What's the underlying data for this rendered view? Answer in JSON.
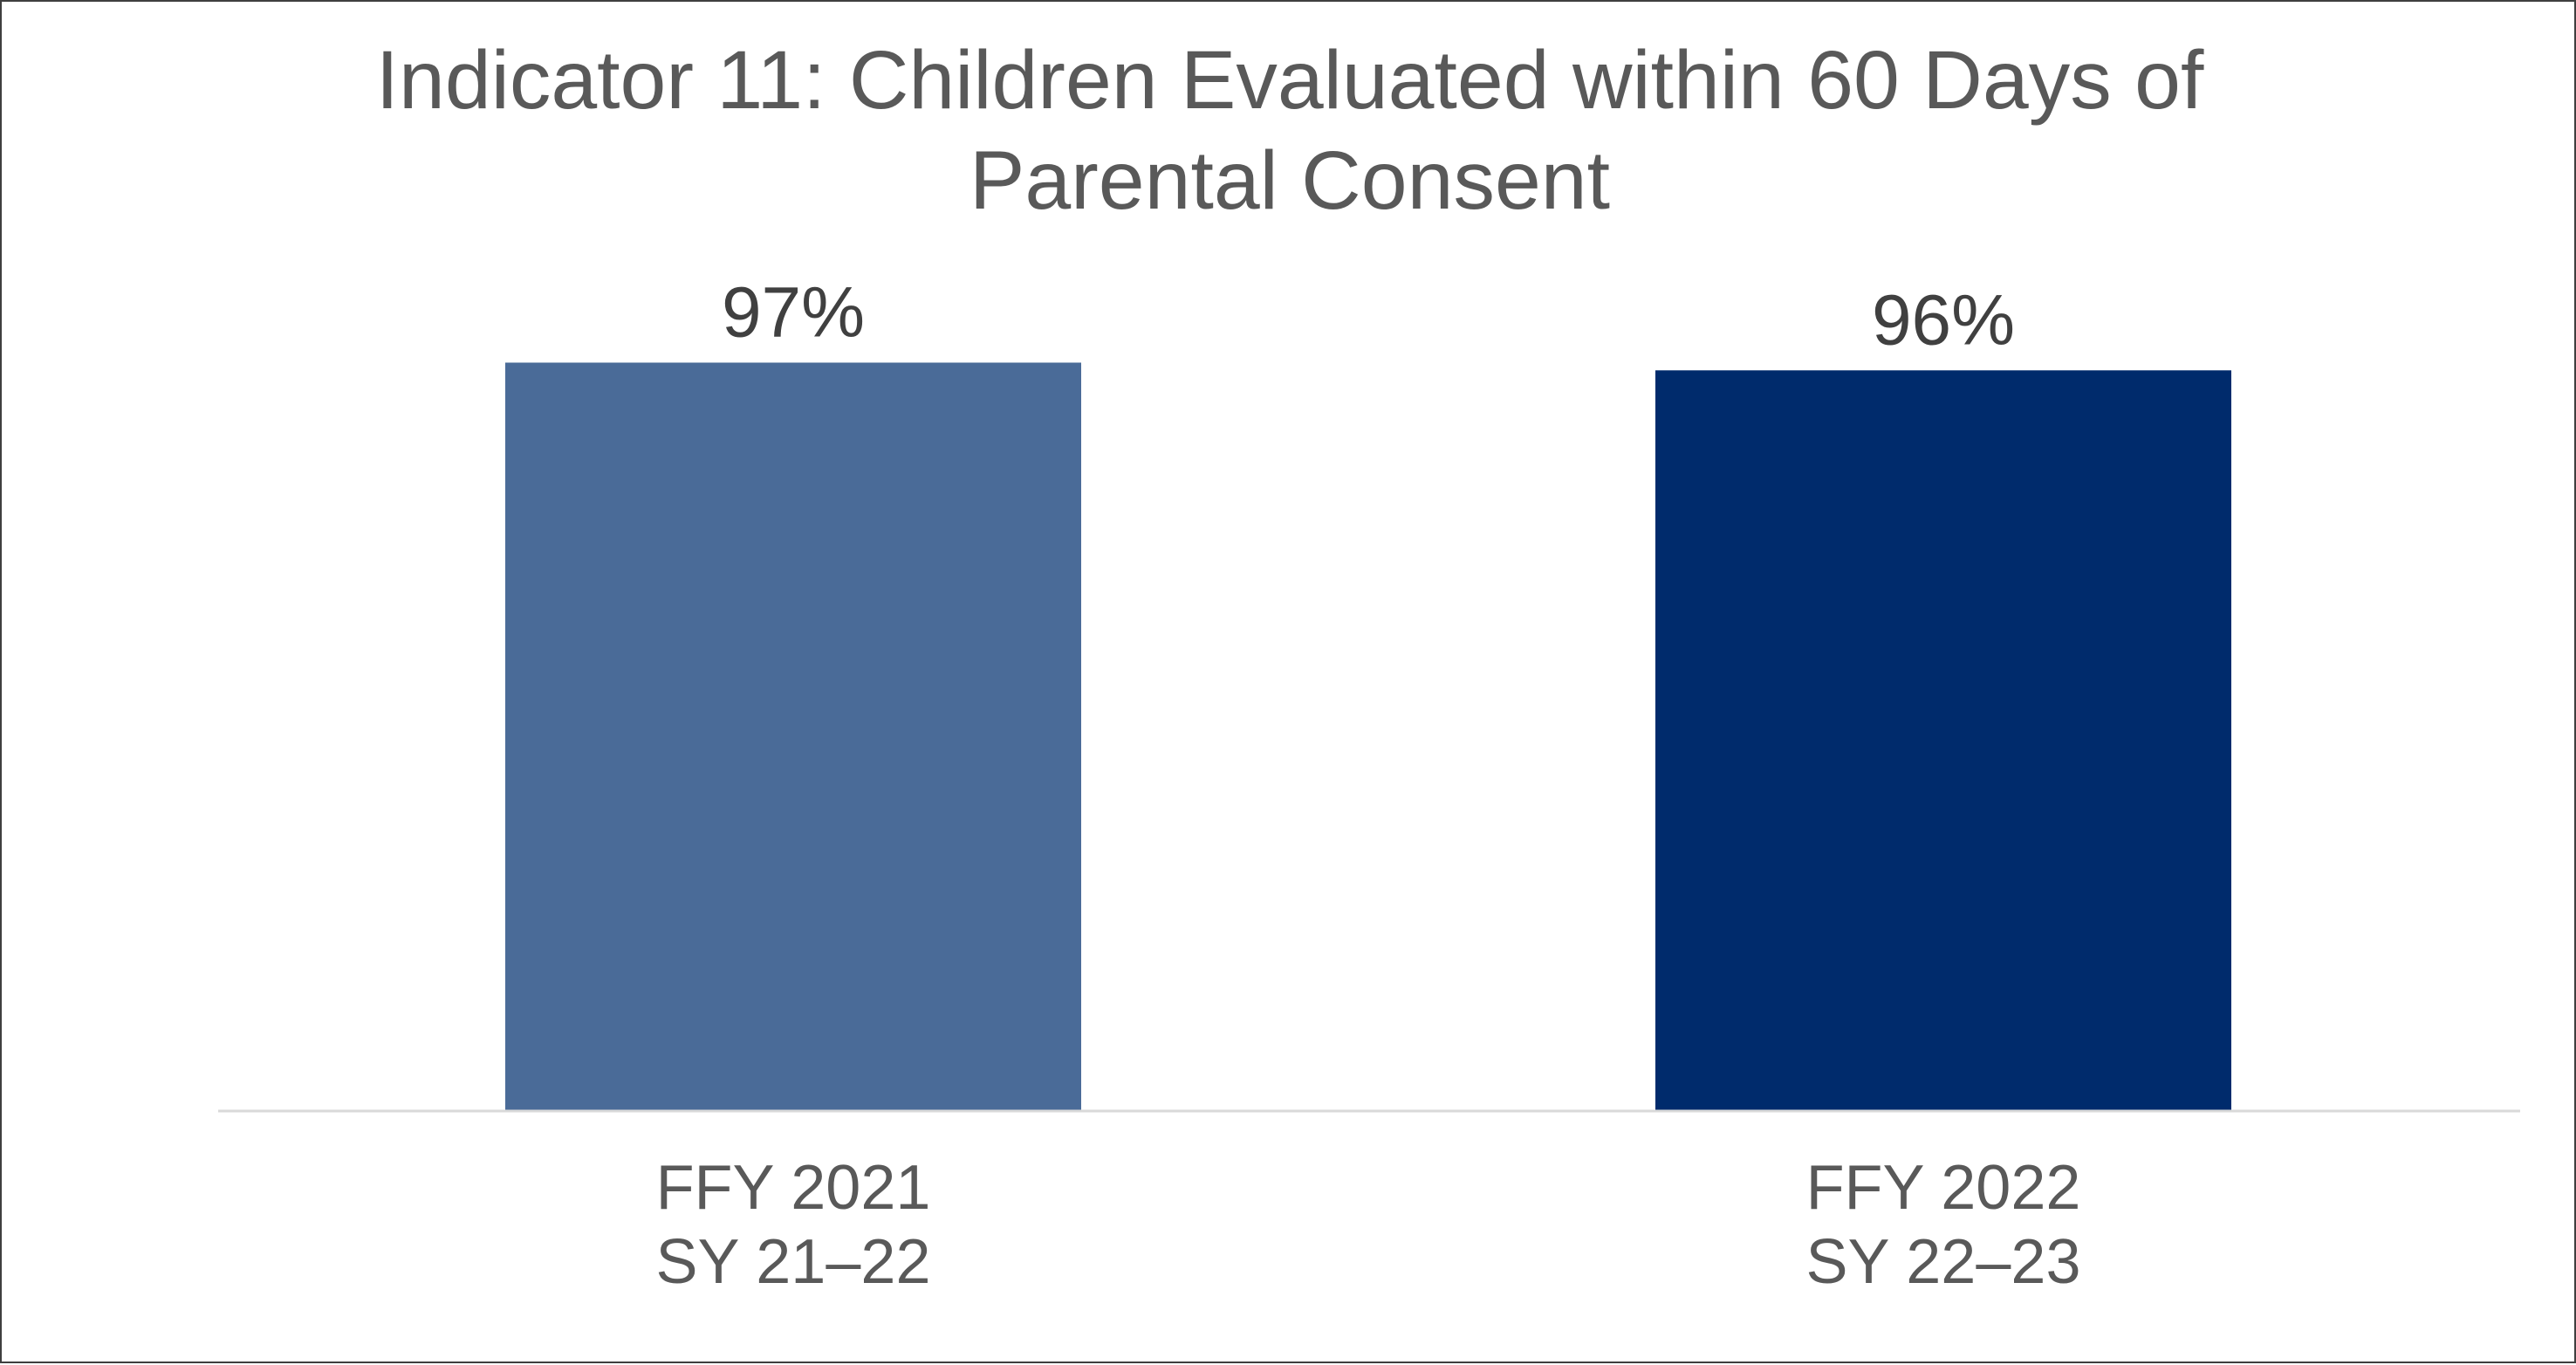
{
  "chart_data": {
    "type": "bar",
    "title_lines": [
      "Indicator 11: Children Evaluated within 60 Days of",
      "Parental Consent"
    ],
    "categories": [
      [
        "FFY 2021",
        "SY 21–22"
      ],
      [
        "FFY 2022",
        "SY 22–23"
      ]
    ],
    "values": [
      97,
      96
    ],
    "value_labels": [
      "97%",
      "96%"
    ],
    "bar_colors": [
      "#4a6b98",
      "#002b6c"
    ],
    "ylim": [
      0,
      100
    ],
    "grid": false,
    "legend": "none",
    "xlabel": "",
    "ylabel": ""
  }
}
